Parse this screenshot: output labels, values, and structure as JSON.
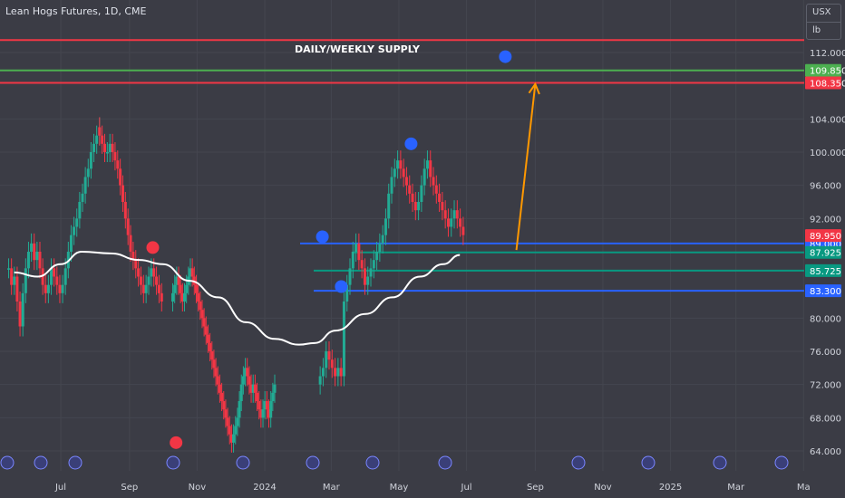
{
  "chart_data": {
    "type": "line",
    "title": "Lean Hogs Futures, 1D, CME",
    "unit_top": "USX",
    "unit_bottom": "lb",
    "annotation": "DAILY/WEEKLY SUPPLY",
    "y_ticks": [
      "112.000",
      "104.000",
      "100.000",
      "96.000",
      "92.000",
      "80.000",
      "76.000",
      "72.000",
      "68.000",
      "64.000"
    ],
    "x_ticks": [
      "Jul",
      "Sep",
      "Nov",
      "2024",
      "Mar",
      "May",
      "Jul",
      "Sep",
      "Nov",
      "2025",
      "Mar",
      "Ma"
    ],
    "ylim": [
      62.5,
      115
    ],
    "horizontal_levels": [
      {
        "value": 113.5,
        "color": "#f23645",
        "label": ""
      },
      {
        "value": 109.85,
        "color": "#4caf50",
        "label": "109.850"
      },
      {
        "value": 108.35,
        "color": "#f23645",
        "label": "108.350"
      },
      {
        "value": 89.0,
        "color": "#2962ff",
        "label": "89.000"
      },
      {
        "value": 87.925,
        "color": "#089981",
        "label": "87.925"
      },
      {
        "value": 85.725,
        "color": "#089981",
        "label": "85.725"
      },
      {
        "value": 83.3,
        "color": "#2962ff",
        "label": "83.300"
      }
    ],
    "last_price": {
      "value": 89.95,
      "label": "89.950",
      "color": "#f23645"
    },
    "price_series_closes": [
      86,
      84,
      85,
      82,
      79,
      83,
      86,
      88,
      89,
      87,
      88,
      86,
      84,
      83,
      84,
      86,
      85,
      84,
      83,
      84,
      86,
      88,
      90,
      91,
      92,
      94,
      95,
      97,
      98,
      100,
      101,
      102,
      103,
      102,
      101,
      100,
      100,
      101,
      100,
      99,
      98,
      96,
      94,
      92,
      90,
      88,
      87,
      86,
      85,
      84,
      83,
      84,
      85,
      86,
      85,
      84,
      83,
      82,
      83,
      84,
      85,
      84,
      83,
      82,
      83,
      84,
      85,
      86,
      85,
      84,
      83,
      82,
      81,
      80,
      79,
      78,
      77,
      76,
      75,
      74,
      73,
      72,
      71,
      70,
      69,
      68,
      67,
      66,
      65,
      66,
      67,
      68,
      70,
      72,
      73,
      74,
      73,
      72,
      71,
      72,
      71,
      70,
      69,
      68,
      69,
      70,
      69,
      68,
      70,
      71,
      72,
      73,
      74,
      76,
      75,
      74,
      73,
      74,
      73,
      82,
      84,
      86,
      88,
      89,
      87,
      86,
      84,
      85,
      86,
      87,
      88,
      89,
      90,
      92,
      95,
      97,
      98,
      99,
      98,
      97,
      96,
      95,
      94,
      93,
      94,
      96,
      98,
      99,
      97,
      96,
      95,
      94,
      93,
      92,
      91,
      92,
      93,
      92,
      91,
      90
    ],
    "moving_average": [
      [
        "2023-05-20",
        85.5
      ],
      [
        "2023-06-10",
        85.0
      ],
      [
        "2023-07-01",
        86.5
      ],
      [
        "2023-07-20",
        88.0
      ],
      [
        "2023-08-15",
        87.8
      ],
      [
        "2023-09-10",
        87.0
      ],
      [
        "2023-10-01",
        86.5
      ],
      [
        "2023-10-25",
        84.5
      ],
      [
        "2023-11-20",
        82.5
      ],
      [
        "2023-12-15",
        79.5
      ],
      [
        "2024-01-10",
        77.5
      ],
      [
        "2024-02-01",
        76.8
      ],
      [
        "2024-02-15",
        77.0
      ],
      [
        "2024-03-05",
        78.5
      ],
      [
        "2024-04-01",
        80.5
      ],
      [
        "2024-04-25",
        82.5
      ],
      [
        "2024-05-20",
        85.0
      ],
      [
        "2024-06-10",
        86.5
      ],
      [
        "2024-06-25",
        87.6
      ]
    ],
    "markers": [
      {
        "date": "2023-10-13",
        "price": 65.0,
        "color": "#f23645"
      },
      {
        "date": "2023-09-22",
        "price": 88.5,
        "color": "#f23645"
      },
      {
        "date": "2024-02-22",
        "price": 89.8,
        "color": "#2962ff"
      },
      {
        "date": "2024-03-10",
        "price": 83.8,
        "color": "#2962ff"
      },
      {
        "date": "2024-05-12",
        "price": 101.0,
        "color": "#2962ff"
      },
      {
        "date": "2024-08-05",
        "price": 111.5,
        "color": "#2962ff"
      }
    ],
    "projection_arrow": {
      "from": [
        "2024-08-15",
        88.2
      ],
      "to": [
        "2024-09-01",
        108.2
      ],
      "color": "#ff9800"
    },
    "grid": true
  }
}
